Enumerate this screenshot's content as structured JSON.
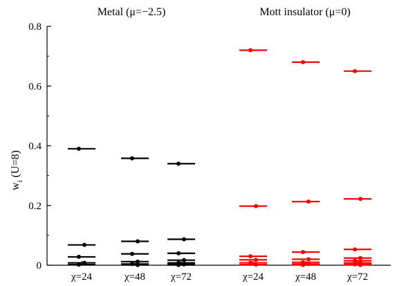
{
  "chart_data": {
    "type": "scatter",
    "ylabel": "w",
    "ylabel_sub": "i",
    "ylabel_suffix": "(U=8)",
    "ylim": [
      0,
      0.8
    ],
    "yticks": [
      {
        "value": 0,
        "label": "0"
      },
      {
        "value": 0.2,
        "label": "0.2"
      },
      {
        "value": 0.4,
        "label": "0.4"
      },
      {
        "value": 0.6,
        "label": "0.6"
      },
      {
        "value": 0.8,
        "label": "0.8"
      }
    ],
    "panels": [
      {
        "title": "Metal (μ=−2.5)",
        "color": "#000000",
        "groups": [
          {
            "label": "χ=24",
            "values": [
              0.39,
              0.068,
              0.028,
              0.008,
              0.002
            ]
          },
          {
            "label": "χ=48",
            "values": [
              0.358,
              0.08,
              0.038,
              0.012,
              0.004,
              0.001
            ]
          },
          {
            "label": "χ=72",
            "values": [
              0.34,
              0.087,
              0.04,
              0.017,
              0.008,
              0.003,
              0.001
            ]
          }
        ]
      },
      {
        "title": "Mott insulator (μ=0)",
        "color": "#ff0000",
        "groups": [
          {
            "label": "χ=24",
            "values": [
              0.72,
              0.198,
              0.03,
              0.018,
              0.008,
              0.002
            ]
          },
          {
            "label": "χ=48",
            "values": [
              0.68,
              0.213,
              0.044,
              0.02,
              0.01,
              0.004,
              0.001
            ]
          },
          {
            "label": "χ=72",
            "values": [
              0.65,
              0.222,
              0.053,
              0.024,
              0.015,
              0.008,
              0.003,
              0.001
            ]
          }
        ]
      }
    ]
  }
}
